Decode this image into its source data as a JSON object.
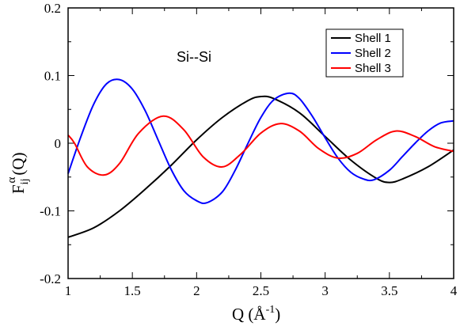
{
  "chart_data": {
    "type": "line",
    "annotation": "Si--Si",
    "xlabel": {
      "base": "Q (",
      "unit": "Å",
      "sup": "-1",
      "close": ")"
    },
    "ylabel": {
      "base": "F",
      "sub": "ij",
      "sup": "α",
      "suffix": "(Q)"
    },
    "xlim": [
      1,
      4
    ],
    "ylim": [
      -0.2,
      0.2
    ],
    "x_ticks": [
      1,
      1.5,
      2,
      2.5,
      3,
      3.5,
      4
    ],
    "x_tick_labels": [
      "1",
      "1.5",
      "2",
      "2.5",
      "3",
      "3.5",
      "4"
    ],
    "y_ticks": [
      -0.2,
      -0.1,
      0,
      0.1,
      0.2
    ],
    "y_tick_labels": [
      "-0.2",
      "-0.1",
      "0",
      "0.1",
      "0.2"
    ],
    "legend_position": "top-right",
    "series": [
      {
        "name": "Shell 1",
        "color": "#000000",
        "x": [
          1.0,
          1.2,
          1.4,
          1.6,
          1.8,
          2.0,
          2.2,
          2.4,
          2.5,
          2.6,
          2.8,
          3.0,
          3.2,
          3.4,
          3.5,
          3.6,
          3.8,
          4.0
        ],
        "y": [
          -0.139,
          -0.125,
          -0.1,
          -0.068,
          -0.033,
          0.005,
          0.038,
          0.063,
          0.069,
          0.066,
          0.045,
          0.01,
          -0.025,
          -0.052,
          -0.058,
          -0.053,
          -0.035,
          -0.01
        ]
      },
      {
        "name": "Shell 2",
        "color": "#0000ff",
        "x": [
          1.0,
          1.1,
          1.2,
          1.3,
          1.4,
          1.5,
          1.6,
          1.7,
          1.8,
          1.9,
          2.0,
          2.08,
          2.2,
          2.3,
          2.4,
          2.5,
          2.6,
          2.72,
          2.8,
          2.9,
          3.0,
          3.1,
          3.2,
          3.3,
          3.38,
          3.5,
          3.6,
          3.7,
          3.8,
          3.9,
          4.0
        ],
        "y": [
          -0.045,
          0.01,
          0.058,
          0.088,
          0.094,
          0.08,
          0.048,
          0.005,
          -0.038,
          -0.07,
          -0.085,
          -0.088,
          -0.072,
          -0.04,
          0.0,
          0.038,
          0.064,
          0.074,
          0.066,
          0.04,
          0.008,
          -0.022,
          -0.043,
          -0.053,
          -0.054,
          -0.04,
          -0.02,
          0.0,
          0.018,
          0.03,
          0.033
        ]
      },
      {
        "name": "Shell 3",
        "color": "#ff0000",
        "x": [
          1.0,
          1.05,
          1.15,
          1.28,
          1.4,
          1.55,
          1.74,
          1.9,
          2.05,
          2.2,
          2.35,
          2.5,
          2.65,
          2.8,
          2.95,
          3.1,
          3.25,
          3.4,
          3.55,
          3.7,
          3.85,
          4.0
        ],
        "y": [
          0.012,
          0.0,
          -0.035,
          -0.047,
          -0.03,
          0.015,
          0.04,
          0.02,
          -0.02,
          -0.035,
          -0.015,
          0.015,
          0.029,
          0.018,
          -0.008,
          -0.022,
          -0.015,
          0.005,
          0.018,
          0.01,
          -0.005,
          -0.012
        ]
      }
    ]
  }
}
